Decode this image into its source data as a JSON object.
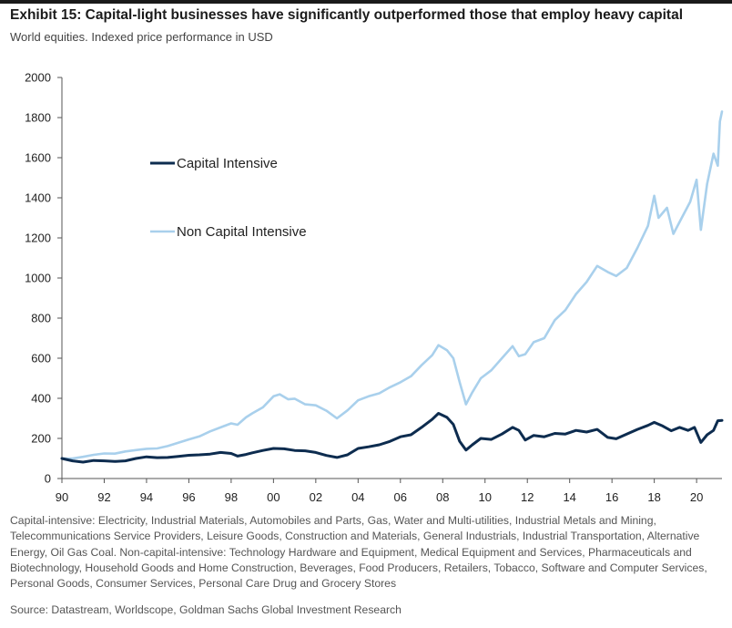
{
  "header": {
    "title": "Exhibit 15: Capital-light businesses have significantly outperformed those that employ heavy capital",
    "subtitle": "World equities. Indexed price performance in USD"
  },
  "footer": {
    "note": "Capital-intensive: Electricity, Industrial Materials, Automobiles and Parts, Gas, Water and Multi-utilities, Industrial Metals and Mining, Telecommunications Service Providers, Leisure Goods, Construction and Materials, General Industrials, Industrial Transportation, Alternative Energy, Oil Gas Coal. Non-capital-intensive: Technology Hardware and Equipment, Medical Equipment and Services, Pharmaceuticals and Biotechnology, Household Goods and Home Construction, Beverages, Food Producers, Retailers, Tobacco, Software and Computer Services, Personal Goods, Consumer Services, Personal Care Drug and Grocery Stores",
    "source": "Source: Datastream, Worldscope, Goldman Sachs Global Investment Research"
  },
  "chart_data": {
    "type": "line",
    "title": "Exhibit 15: Capital-light businesses have significantly outperformed those that employ heavy capital",
    "subtitle": "World equities. Indexed price performance in USD",
    "xlabel": "",
    "ylabel": "",
    "xlim": [
      1990,
      2021.2
    ],
    "ylim": [
      0,
      2000
    ],
    "x_ticks": [
      1990,
      1992,
      1994,
      1996,
      1998,
      2000,
      2002,
      2004,
      2006,
      2008,
      2010,
      2012,
      2014,
      2016,
      2018,
      2020
    ],
    "x_tick_labels": [
      "90",
      "92",
      "94",
      "96",
      "98",
      "00",
      "02",
      "04",
      "06",
      "08",
      "10",
      "12",
      "14",
      "16",
      "18",
      "20"
    ],
    "y_ticks": [
      0,
      200,
      400,
      600,
      800,
      1000,
      1200,
      1400,
      1600,
      1800,
      2000
    ],
    "y_tick_labels": [
      "0",
      "200",
      "400",
      "600",
      "800",
      "1000",
      "1200",
      "1400",
      "1600",
      "1800",
      "2000"
    ],
    "grid": false,
    "legend_position": "upper-left",
    "series": [
      {
        "name": "Capital Intensive",
        "color": "#0d2c4f",
        "points": [
          [
            1990.0,
            100
          ],
          [
            1990.5,
            88
          ],
          [
            1991.0,
            82
          ],
          [
            1991.5,
            90
          ],
          [
            1992.0,
            88
          ],
          [
            1992.5,
            85
          ],
          [
            1993.0,
            88
          ],
          [
            1993.5,
            100
          ],
          [
            1994.0,
            108
          ],
          [
            1994.5,
            104
          ],
          [
            1995.0,
            105
          ],
          [
            1995.5,
            110
          ],
          [
            1996.0,
            116
          ],
          [
            1996.5,
            118
          ],
          [
            1997.0,
            122
          ],
          [
            1997.5,
            130
          ],
          [
            1998.0,
            125
          ],
          [
            1998.3,
            112
          ],
          [
            1998.7,
            120
          ],
          [
            1999.0,
            128
          ],
          [
            1999.5,
            140
          ],
          [
            2000.0,
            150
          ],
          [
            2000.5,
            148
          ],
          [
            2001.0,
            140
          ],
          [
            2001.5,
            138
          ],
          [
            2002.0,
            130
          ],
          [
            2002.5,
            115
          ],
          [
            2003.0,
            105
          ],
          [
            2003.5,
            118
          ],
          [
            2004.0,
            150
          ],
          [
            2004.5,
            158
          ],
          [
            2005.0,
            168
          ],
          [
            2005.5,
            185
          ],
          [
            2006.0,
            208
          ],
          [
            2006.5,
            218
          ],
          [
            2007.0,
            255
          ],
          [
            2007.5,
            295
          ],
          [
            2007.8,
            325
          ],
          [
            2008.2,
            305
          ],
          [
            2008.5,
            270
          ],
          [
            2008.8,
            185
          ],
          [
            2009.1,
            142
          ],
          [
            2009.4,
            168
          ],
          [
            2009.8,
            200
          ],
          [
            2010.3,
            195
          ],
          [
            2010.8,
            222
          ],
          [
            2011.3,
            255
          ],
          [
            2011.6,
            240
          ],
          [
            2011.9,
            192
          ],
          [
            2012.3,
            215
          ],
          [
            2012.8,
            208
          ],
          [
            2013.3,
            225
          ],
          [
            2013.8,
            222
          ],
          [
            2014.3,
            240
          ],
          [
            2014.8,
            232
          ],
          [
            2015.3,
            245
          ],
          [
            2015.8,
            205
          ],
          [
            2016.2,
            198
          ],
          [
            2016.7,
            222
          ],
          [
            2017.2,
            245
          ],
          [
            2017.7,
            265
          ],
          [
            2018.0,
            280
          ],
          [
            2018.4,
            262
          ],
          [
            2018.8,
            238
          ],
          [
            2019.2,
            255
          ],
          [
            2019.6,
            240
          ],
          [
            2019.9,
            255
          ],
          [
            2020.2,
            180
          ],
          [
            2020.5,
            218
          ],
          [
            2020.8,
            240
          ],
          [
            2021.0,
            288
          ],
          [
            2021.2,
            290
          ]
        ]
      },
      {
        "name": "Non Capital Intensive",
        "color": "#a9d0ec",
        "points": [
          [
            1990.0,
            100
          ],
          [
            1990.5,
            100
          ],
          [
            1991.0,
            108
          ],
          [
            1991.5,
            118
          ],
          [
            1992.0,
            125
          ],
          [
            1992.5,
            124
          ],
          [
            1993.0,
            135
          ],
          [
            1993.5,
            142
          ],
          [
            1994.0,
            148
          ],
          [
            1994.5,
            150
          ],
          [
            1995.0,
            162
          ],
          [
            1995.5,
            178
          ],
          [
            1996.0,
            195
          ],
          [
            1996.5,
            210
          ],
          [
            1997.0,
            235
          ],
          [
            1997.5,
            255
          ],
          [
            1998.0,
            275
          ],
          [
            1998.3,
            268
          ],
          [
            1998.7,
            305
          ],
          [
            1999.0,
            325
          ],
          [
            1999.5,
            355
          ],
          [
            2000.0,
            410
          ],
          [
            2000.3,
            420
          ],
          [
            2000.7,
            395
          ],
          [
            2001.0,
            398
          ],
          [
            2001.5,
            370
          ],
          [
            2002.0,
            365
          ],
          [
            2002.5,
            338
          ],
          [
            2003.0,
            300
          ],
          [
            2003.5,
            340
          ],
          [
            2004.0,
            390
          ],
          [
            2004.5,
            410
          ],
          [
            2005.0,
            425
          ],
          [
            2005.5,
            455
          ],
          [
            2006.0,
            480
          ],
          [
            2006.5,
            510
          ],
          [
            2007.0,
            565
          ],
          [
            2007.5,
            615
          ],
          [
            2007.8,
            665
          ],
          [
            2008.2,
            640
          ],
          [
            2008.5,
            600
          ],
          [
            2008.8,
            480
          ],
          [
            2009.1,
            370
          ],
          [
            2009.4,
            430
          ],
          [
            2009.8,
            500
          ],
          [
            2010.3,
            540
          ],
          [
            2010.8,
            600
          ],
          [
            2011.3,
            660
          ],
          [
            2011.6,
            610
          ],
          [
            2011.9,
            620
          ],
          [
            2012.3,
            680
          ],
          [
            2012.8,
            700
          ],
          [
            2013.3,
            790
          ],
          [
            2013.8,
            840
          ],
          [
            2014.3,
            920
          ],
          [
            2014.8,
            980
          ],
          [
            2015.3,
            1060
          ],
          [
            2015.8,
            1030
          ],
          [
            2016.2,
            1010
          ],
          [
            2016.7,
            1050
          ],
          [
            2017.2,
            1150
          ],
          [
            2017.7,
            1260
          ],
          [
            2018.0,
            1410
          ],
          [
            2018.2,
            1300
          ],
          [
            2018.6,
            1350
          ],
          [
            2018.9,
            1220
          ],
          [
            2019.3,
            1300
          ],
          [
            2019.7,
            1380
          ],
          [
            2020.0,
            1490
          ],
          [
            2020.2,
            1240
          ],
          [
            2020.5,
            1470
          ],
          [
            2020.8,
            1620
          ],
          [
            2021.0,
            1560
          ],
          [
            2021.1,
            1780
          ],
          [
            2021.2,
            1830
          ]
        ]
      }
    ]
  }
}
